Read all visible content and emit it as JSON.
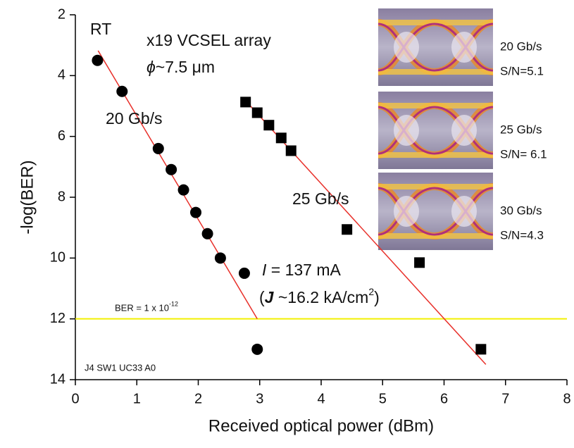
{
  "chart_data": {
    "type": "scatter",
    "xlabel": "Received optical power (dBm)",
    "ylabel": "-log(BER)",
    "xlim": [
      0,
      8
    ],
    "ylim": [
      2,
      14
    ],
    "y_inverted": true,
    "xticks": [
      0,
      1,
      2,
      3,
      4,
      5,
      6,
      7,
      8
    ],
    "yticks": [
      2,
      4,
      6,
      8,
      10,
      12,
      14
    ],
    "series": [
      {
        "name": "20 Gb/s",
        "marker": "circle",
        "color": "#000000",
        "x": [
          0.36,
          0.76,
          1.35,
          1.56,
          1.76,
          1.96,
          2.15,
          2.36,
          2.75,
          2.96
        ],
        "values": [
          3.5,
          4.52,
          6.4,
          7.09,
          7.76,
          8.5,
          9.2,
          10.0,
          10.5,
          13.0
        ]
      },
      {
        "name": "25 Gb/s",
        "marker": "square",
        "color": "#000000",
        "x": [
          2.77,
          2.96,
          3.15,
          3.35,
          3.51,
          4.42,
          5.6,
          6.6
        ],
        "values": [
          4.87,
          5.22,
          5.63,
          6.05,
          6.47,
          9.06,
          10.15,
          13.0
        ]
      }
    ],
    "fit_lines": [
      {
        "color": "#e8302a",
        "x": [
          0.37,
          2.96
        ],
        "values": [
          3.18,
          12.0
        ]
      },
      {
        "color": "#e8302a",
        "x": [
          2.75,
          6.68
        ],
        "values": [
          4.78,
          13.5
        ]
      }
    ],
    "threshold": {
      "value": 12,
      "color": "#f2f000",
      "label": "BER = 1 x 10",
      "label_exp": "-12"
    },
    "annotations": {
      "temp": "RT",
      "device": "x19 VCSEL array",
      "diameter_symbol": "ϕ",
      "diameter": "~7.5 μm",
      "current_symbol": "I",
      "current": " = 137 mA",
      "density_open": "(",
      "density_symbol": "J",
      "density": " ~16.2 kA/cm",
      "density_exp": "2",
      "density_close": ")",
      "sample": "J4 SW1 UC33 A0"
    },
    "eye_labels": [
      {
        "rate": "20 Gb/s",
        "snr": "S/N=5.1"
      },
      {
        "rate": "25 Gb/s",
        "snr": "S/N= 6.1"
      },
      {
        "rate": "30 Gb/s",
        "snr": "S/N=4.3"
      }
    ]
  }
}
